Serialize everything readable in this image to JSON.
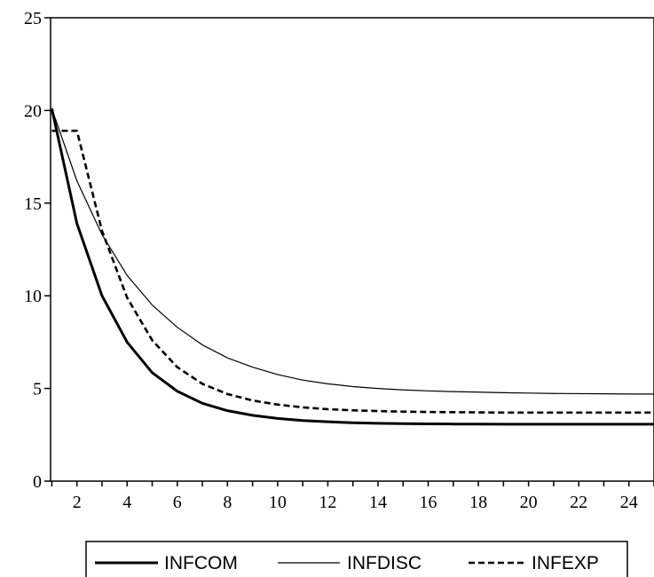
{
  "chart_data": {
    "type": "line",
    "title": "",
    "xlabel": "",
    "ylabel": "",
    "x": [
      1,
      2,
      3,
      4,
      5,
      6,
      7,
      8,
      9,
      10,
      11,
      12,
      13,
      14,
      15,
      16,
      17,
      18,
      19,
      20,
      21,
      22,
      23,
      24,
      25
    ],
    "xticks": [
      2,
      4,
      6,
      8,
      10,
      12,
      14,
      16,
      18,
      20,
      22,
      24
    ],
    "yticks": [
      0,
      5,
      10,
      15,
      20,
      25
    ],
    "xlim": [
      0.95,
      25
    ],
    "ylim": [
      0,
      25
    ],
    "grid": false,
    "legend": "bottom",
    "series": [
      {
        "name": "INFCOM",
        "style": "solid-thick",
        "color": "#000000",
        "values": [
          20.1,
          13.9,
          10.0,
          7.5,
          5.85,
          4.85,
          4.2,
          3.8,
          3.55,
          3.38,
          3.27,
          3.2,
          3.15,
          3.12,
          3.1,
          3.09,
          3.08,
          3.08,
          3.07,
          3.07,
          3.07,
          3.07,
          3.07,
          3.07,
          3.07
        ]
      },
      {
        "name": "INFDISC",
        "style": "solid-thin",
        "color": "#000000",
        "values": [
          20.1,
          16.2,
          13.3,
          11.1,
          9.5,
          8.3,
          7.35,
          6.65,
          6.15,
          5.75,
          5.45,
          5.25,
          5.1,
          5.0,
          4.92,
          4.87,
          4.83,
          4.8,
          4.77,
          4.75,
          4.73,
          4.72,
          4.71,
          4.7,
          4.7
        ]
      },
      {
        "name": "INFEXP",
        "style": "dashed",
        "color": "#000000",
        "values": [
          18.9,
          18.9,
          13.5,
          9.9,
          7.6,
          6.15,
          5.25,
          4.7,
          4.35,
          4.13,
          3.98,
          3.88,
          3.82,
          3.78,
          3.75,
          3.73,
          3.72,
          3.71,
          3.7,
          3.7,
          3.7,
          3.7,
          3.7,
          3.7,
          3.7
        ]
      }
    ]
  }
}
